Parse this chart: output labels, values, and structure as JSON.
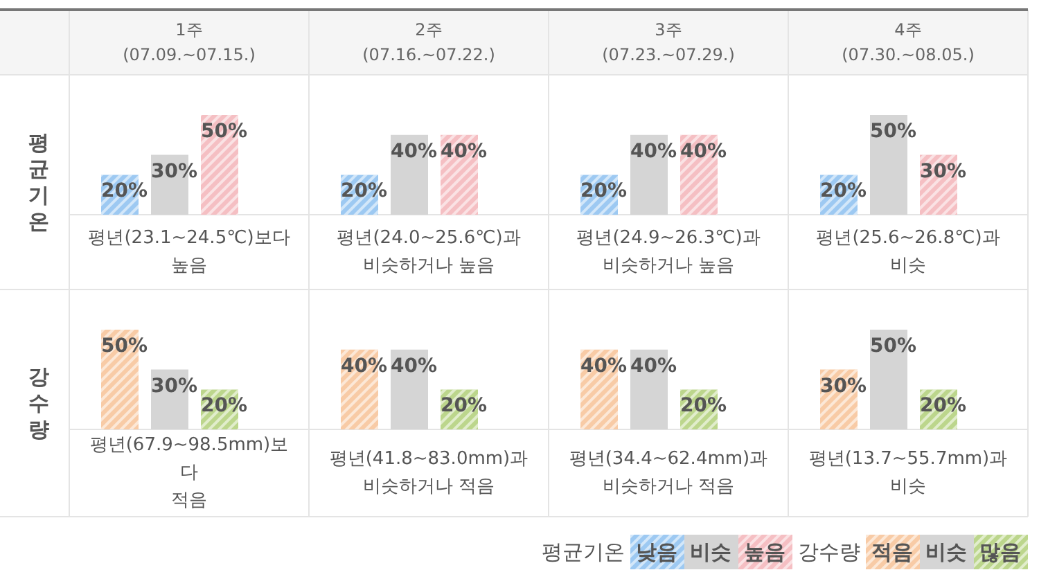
{
  "chart_data": [
    {
      "type": "bar",
      "categories": [
        "1주\n(07.09.~07.15.)",
        "2주\n(07.16.~07.22.)",
        "3주\n(07.23.~07.29.)",
        "4주\n(07.30.~08.05.)"
      ],
      "ylabel": "평균기온",
      "legend_title": "평균기온",
      "legend": "bottom right",
      "tick_labels": "x",
      "ylim": [
        0,
        50
      ],
      "series": [
        {
          "name": "낮음",
          "color": "#9dc9f2",
          "values": [
            20,
            20,
            20,
            20
          ],
          "value_labels": [
            "20%",
            "20%",
            "20%",
            "20%"
          ]
        },
        {
          "name": "비슷",
          "color": "#d5d5d5",
          "values": [
            30,
            40,
            40,
            50
          ],
          "value_labels": [
            "30%",
            "40%",
            "40%",
            "50%"
          ]
        },
        {
          "name": "높음",
          "color": "#f5bfc3",
          "values": [
            50,
            40,
            40,
            30
          ],
          "value_labels": [
            "50%",
            "40%",
            "40%",
            "30%"
          ]
        }
      ],
      "annotations": [
        "평년(23.1~24.5℃)보다\n높음",
        "평년(24.0~25.6℃)과\n비슷하거나 높음",
        "평년(24.9~26.3℃)과\n비슷하거나 높음",
        "평년(25.6~26.8℃)과\n비슷"
      ]
    },
    {
      "type": "bar",
      "categories": [
        null,
        null,
        null,
        null
      ],
      "ylabel": "강수량",
      "legend_title": "강수량",
      "legend": "bottom right",
      "tick_labels": false,
      "ylim": [
        0,
        50
      ],
      "series": [
        {
          "name": "적음",
          "color": "#f8cba6",
          "values": [
            50,
            40,
            40,
            30
          ],
          "value_labels": [
            "50%",
            "40%",
            "40%",
            "30%"
          ]
        },
        {
          "name": "비슷",
          "color": "#d5d5d5",
          "values": [
            30,
            40,
            40,
            50
          ],
          "value_labels": [
            "30%",
            "40%",
            "40%",
            "50%"
          ]
        },
        {
          "name": "많음",
          "color": "#bcd68c",
          "values": [
            20,
            20,
            20,
            20
          ],
          "value_labels": [
            "20%",
            "20%",
            "20%",
            "20%"
          ]
        }
      ],
      "annotations": [
        "평년(67.9~98.5mm)보\n다\n적음",
        "평년(41.8~83.0mm)과\n비슷하거나 적음",
        "평년(34.4~62.4mm)과\n비슷하거나 적음",
        "평년(13.7~55.7mm)과\n비슷"
      ]
    }
  ]
}
